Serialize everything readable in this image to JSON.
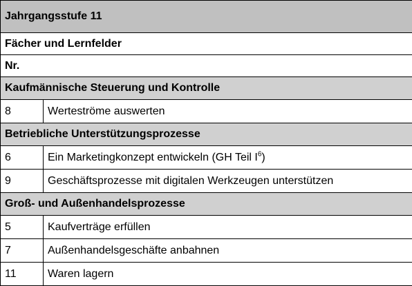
{
  "header": {
    "title": "Jahrgangsstufe 11",
    "subtitle": "Fächer und Lernfelder",
    "nr_label": "Nr."
  },
  "groups": [
    {
      "title": "Kaufmännische Steuerung und Kontrolle",
      "items": [
        {
          "nr": "8",
          "text": "Werteströme auswerten"
        }
      ]
    },
    {
      "title": "Betriebliche Unterstützungsprozesse",
      "items": [
        {
          "nr": "6",
          "text": "Ein Marketingkonzept entwickeln (GH Teil I",
          "footnote": "6",
          "suffix": ")"
        },
        {
          "nr": "9",
          "text": "Geschäftsprozesse mit digitalen Werkzeugen unterstützen"
        }
      ]
    },
    {
      "title": "Groß- und Außenhandelsprozesse",
      "items": [
        {
          "nr": "5",
          "text": "Kaufverträge erfüllen"
        },
        {
          "nr": "7",
          "text": "Außenhandelsgeschäfte anbahnen"
        },
        {
          "nr": "11",
          "text": "Waren lagern"
        }
      ]
    }
  ],
  "colors": {
    "title_band": "#c0c0c0",
    "group_band": "#d0d0d0",
    "border": "#000000"
  }
}
